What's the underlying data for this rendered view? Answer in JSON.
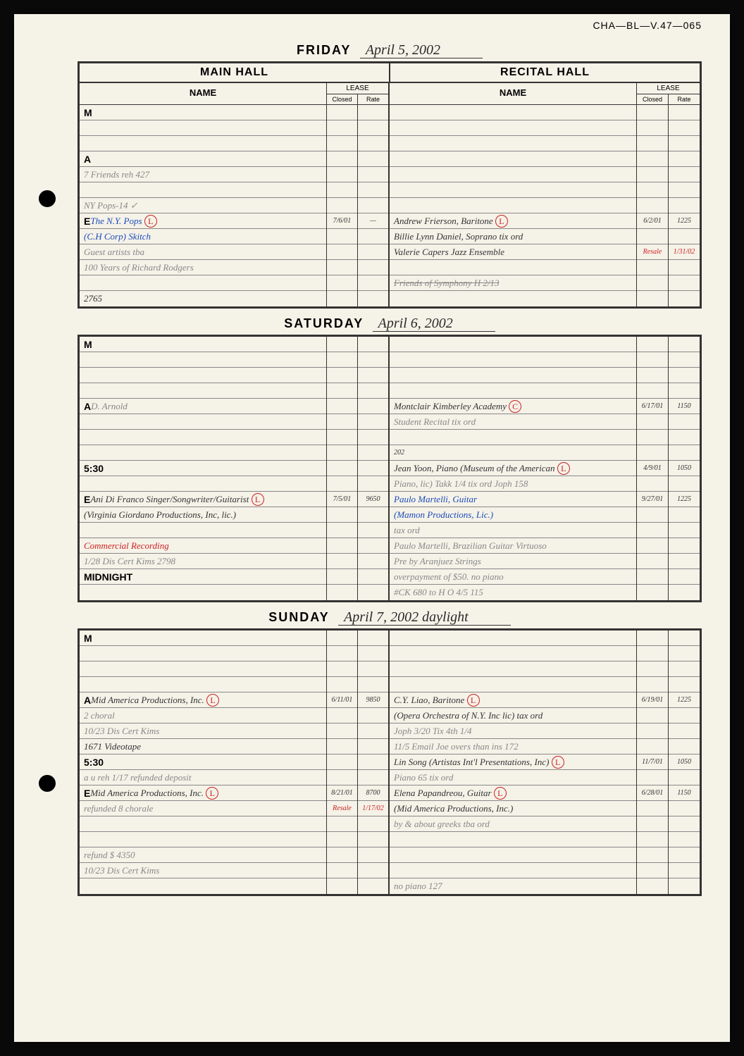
{
  "page_id": "CHA—BL—V.47—065",
  "colors": {
    "paper": "#f5f2e8",
    "border": "#333333",
    "pencil": "#888888",
    "ink_black": "#333333",
    "ink_blue": "#1a4bba",
    "ink_red": "#cc2222"
  },
  "days": [
    {
      "label": "FRIDAY",
      "date_hw": "April 5, 2002",
      "show_hall_headers": true,
      "main": {
        "rows": [
          {
            "label": "M",
            "text": ""
          },
          {
            "text": ""
          },
          {
            "text": ""
          },
          {
            "label": "A",
            "text": ""
          },
          {
            "text": "7 Friends reh 427",
            "cls": "hw hw-pencil"
          },
          {
            "text": ""
          },
          {
            "text": "NY Pops-14        ✓",
            "cls": "hw hw-pencil"
          },
          {
            "label": "E",
            "text": "The N.Y. Pops",
            "cls": "hw hw-blue",
            "circled": "L",
            "closed": "7/6/01",
            "rate": "—"
          },
          {
            "text": "(C.H Corp)   Skitch",
            "cls": "hw hw-blue"
          },
          {
            "text": "Guest artists tba",
            "cls": "hw hw-pencil"
          },
          {
            "text": "100 Years of Richard Rodgers",
            "cls": "hw hw-pencil"
          },
          {
            "text": ""
          },
          {
            "text": "                    2765",
            "cls": "hw"
          }
        ]
      },
      "recital": {
        "rows": [
          {
            "text": ""
          },
          {
            "text": ""
          },
          {
            "text": ""
          },
          {
            "text": ""
          },
          {
            "text": ""
          },
          {
            "text": ""
          },
          {
            "text": ""
          },
          {
            "text": "Andrew Frierson, Baritone",
            "cls": "hw",
            "circled": "L",
            "closed": "6/2/01",
            "rate": "1225"
          },
          {
            "text": "Billie Lynn Daniel, Soprano    tix ord",
            "cls": "hw"
          },
          {
            "text": "Valerie Capers Jazz Ensemble",
            "cls": "hw",
            "closed_red": "Resale",
            "rate_red": "1/31/02"
          },
          {
            "text": ""
          },
          {
            "text": "Friends of Symphony  H 2/13",
            "cls": "hw hw-pencil strike"
          },
          {
            "text": ""
          }
        ]
      }
    },
    {
      "label": "SATURDAY",
      "date_hw": "April 6, 2002",
      "show_hall_headers": false,
      "main": {
        "rows": [
          {
            "label": "M",
            "text": ""
          },
          {
            "text": ""
          },
          {
            "text": ""
          },
          {
            "text": ""
          },
          {
            "label": "A",
            "text": "D. Arnold",
            "cls": "hw hw-pencil"
          },
          {
            "text": ""
          },
          {
            "text": ""
          },
          {
            "text": ""
          },
          {
            "label": "5:30",
            "text": ""
          },
          {
            "text": ""
          },
          {
            "label": "E",
            "text": "Ani Di Franco Singer/Songwriter/Guitarist",
            "cls": "hw",
            "circled": "L",
            "closed": "7/5/01",
            "rate": "9650"
          },
          {
            "text": "(Virginia Giordano Productions, Inc, lic.)",
            "cls": "hw"
          },
          {
            "text": ""
          },
          {
            "text": "Commercial Recording",
            "cls": "hw hw-red"
          },
          {
            "text": "1/28 Dis Cert Kims      2798",
            "cls": "hw hw-pencil"
          },
          {
            "label": "MIDNIGHT",
            "text": ""
          },
          {
            "text": ""
          }
        ]
      },
      "recital": {
        "rows": [
          {
            "text": ""
          },
          {
            "text": ""
          },
          {
            "text": ""
          },
          {
            "text": ""
          },
          {
            "text": "Montclair Kimberley Academy",
            "cls": "hw",
            "circled": "C",
            "closed": "6/17/01",
            "rate": "1150"
          },
          {
            "text": "Student Recital          tix ord",
            "cls": "hw hw-pencil"
          },
          {
            "text": ""
          },
          {
            "text": "                         202",
            "cls": "hw small"
          },
          {
            "text": "Jean Yoon, Piano (Museum of the American",
            "cls": "hw",
            "circled": "L",
            "closed": "4/9/01",
            "rate": "1050"
          },
          {
            "text": "Piano, lic)     Takk 1/4  tix ord   Joph 158",
            "cls": "hw hw-pencil"
          },
          {
            "text": "Paulo Martelli, Guitar",
            "cls": "hw hw-blue",
            "closed": "9/27/01",
            "rate": "1225"
          },
          {
            "text": "(Mamon Productions, Lic.)",
            "cls": "hw hw-blue"
          },
          {
            "text": "                         tax ord",
            "cls": "hw hw-pencil"
          },
          {
            "text": "Paulo Martelli, Brazilian Guitar Virtuoso",
            "cls": "hw hw-pencil"
          },
          {
            "text": "Pre by Aranjuez Strings",
            "cls": "hw hw-pencil"
          },
          {
            "text": "overpayment of $50. no piano",
            "cls": "hw hw-pencil"
          },
          {
            "text": "#CK 680 to H O 4/5     115",
            "cls": "hw hw-pencil"
          }
        ]
      }
    },
    {
      "label": "SUNDAY",
      "date_hw": "April 7, 2002   daylight",
      "show_hall_headers": false,
      "main": {
        "rows": [
          {
            "label": "M",
            "text": ""
          },
          {
            "text": ""
          },
          {
            "text": ""
          },
          {
            "text": ""
          },
          {
            "label": "A",
            "text": "Mid America Productions, Inc.",
            "cls": "hw",
            "circled": "L",
            "closed": "6/11/01",
            "rate": "9850"
          },
          {
            "text": "         2            choral",
            "cls": "hw hw-pencil"
          },
          {
            "text": "10/23 Dis Cert Kims",
            "cls": "hw hw-pencil"
          },
          {
            "text": "              1671 Videotape",
            "cls": "hw"
          },
          {
            "label": "5:30",
            "text": ""
          },
          {
            "text": "a u reh 1/17      refunded deposit",
            "cls": "hw hw-pencil"
          },
          {
            "label": "E",
            "text": "Mid America Productions, Inc.",
            "cls": "hw",
            "circled": "L",
            "closed": "8/21/01",
            "rate": "8700"
          },
          {
            "text": "refunded    8     chorale",
            "cls": "hw hw-pencil",
            "closed_red": "Resale",
            "rate_red": "1/17/02"
          },
          {
            "text": ""
          },
          {
            "text": ""
          },
          {
            "text": "refund $ 4350",
            "cls": "hw hw-pencil"
          },
          {
            "text": "10/23 Dis Cert Kims",
            "cls": "hw hw-pencil"
          },
          {
            "text": ""
          }
        ]
      },
      "recital": {
        "rows": [
          {
            "text": ""
          },
          {
            "text": ""
          },
          {
            "text": ""
          },
          {
            "text": ""
          },
          {
            "text": "C.Y. Liao, Baritone",
            "cls": "hw",
            "circled": "L",
            "closed": "6/19/01",
            "rate": "1225"
          },
          {
            "text": "(Opera Orchestra of N.Y. Inc lic)   tax ord",
            "cls": "hw"
          },
          {
            "text": "            Joph 3/20   Tix 4th 1/4",
            "cls": "hw hw-pencil"
          },
          {
            "text": "11/5 Email Joe overs than ins    172",
            "cls": "hw hw-pencil"
          },
          {
            "text": "Lin Song (Artistas Int'l Presentations, Inc)",
            "cls": "hw",
            "circled": "L",
            "closed": "11/7/01",
            "rate": "1050"
          },
          {
            "text": "Piano                  65    tix  ord",
            "cls": "hw hw-pencil"
          },
          {
            "text": "Elena Papandreou, Guitar",
            "cls": "hw",
            "circled": "L",
            "closed": "6/28/01",
            "rate": "1150"
          },
          {
            "text": "(Mid America Productions, Inc.)",
            "cls": "hw"
          },
          {
            "text": "by & about greeks  tba    ord",
            "cls": "hw hw-pencil"
          },
          {
            "text": ""
          },
          {
            "text": ""
          },
          {
            "text": ""
          },
          {
            "text": "           no piano   127",
            "cls": "hw hw-pencil"
          }
        ]
      }
    }
  ],
  "headers": {
    "main_hall": "MAIN HALL",
    "recital_hall": "RECITAL HALL",
    "name": "NAME",
    "lease": "LEASE",
    "closed": "Closed",
    "rate": "Rate"
  }
}
